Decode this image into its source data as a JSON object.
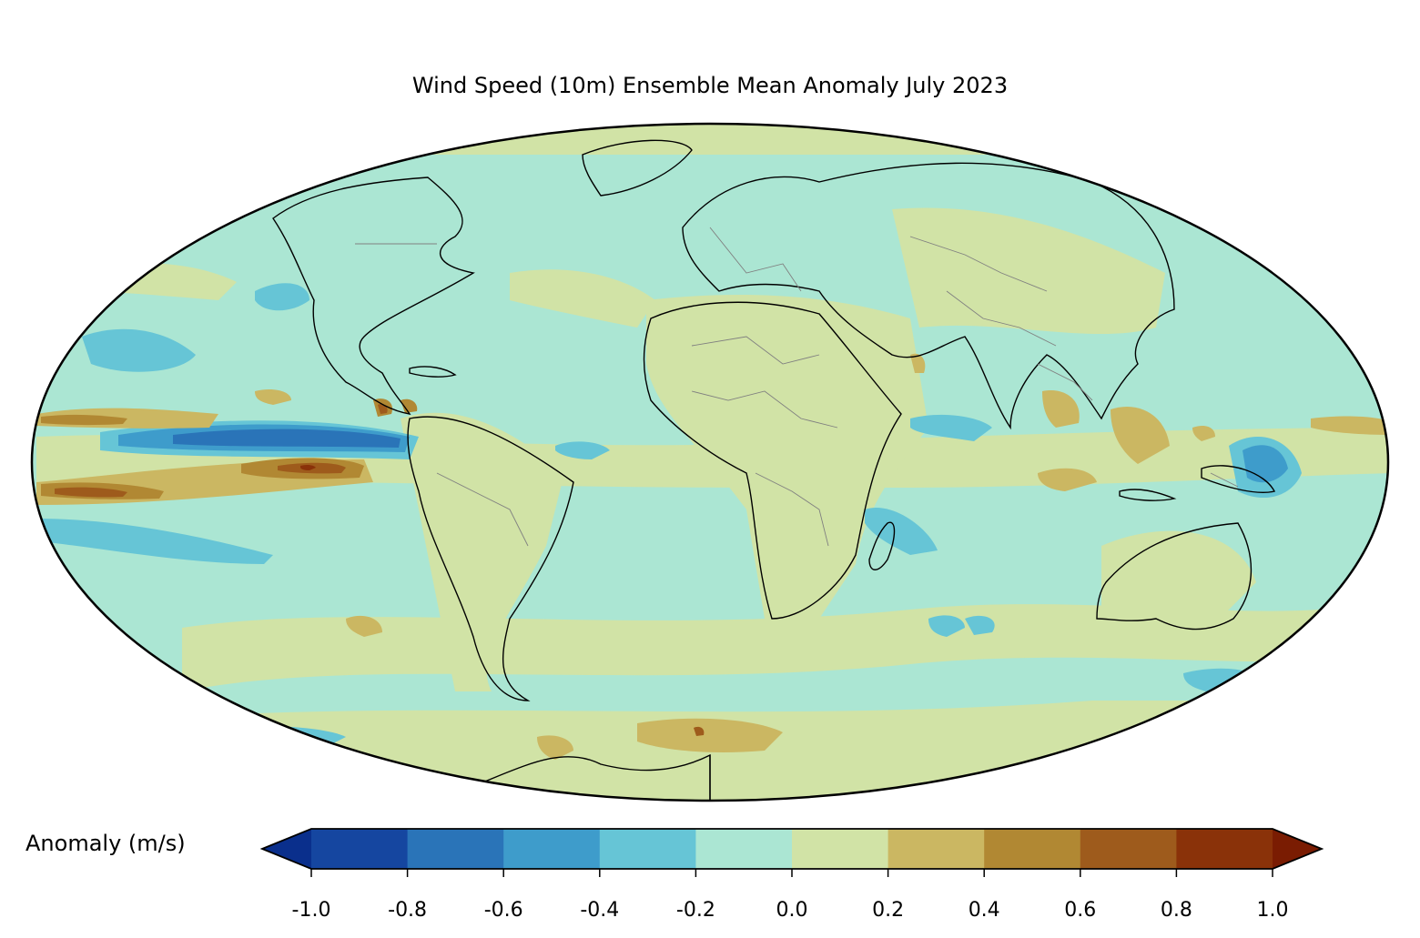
{
  "title": "Wind Speed (10m) Ensemble Mean Anomaly July 2023",
  "projection": "Mollweide",
  "colorbar": {
    "label": "Anomaly (m/s)",
    "min": -1.0,
    "max": 1.0,
    "step": 0.2,
    "extend": "both",
    "ticks": [
      "-1.0",
      "-0.8",
      "-0.6",
      "-0.4",
      "-0.2",
      "0.0",
      "0.2",
      "0.4",
      "0.6",
      "0.8",
      "1.0"
    ],
    "colors": [
      "#1546a0",
      "#2a74b8",
      "#3e9ccb",
      "#66c5d6",
      "#abe6d3",
      "#d1e3a6",
      "#cbb762",
      "#b18833",
      "#9e5b1c",
      "#8a3209"
    ],
    "under_color": "#0a2f8c",
    "over_color": "#7a1c02"
  },
  "map_colors": {
    "ocean_base": "#abe6d3",
    "land_outline": "#000000",
    "country_border": "#808080"
  }
}
